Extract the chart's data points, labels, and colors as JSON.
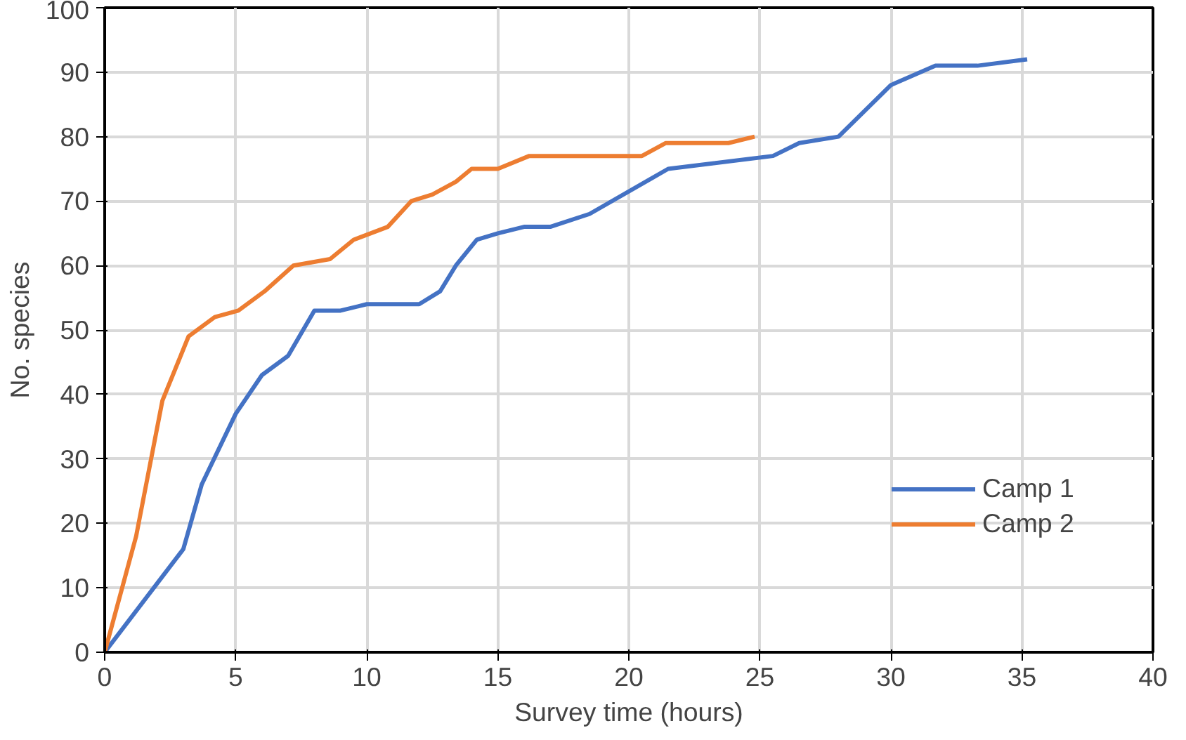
{
  "chart_data": {
    "type": "line",
    "xlabel": "Survey time (hours)",
    "ylabel": "No. species",
    "xlim": [
      0,
      40
    ],
    "ylim": [
      0,
      100
    ],
    "xticks": [
      0,
      5,
      10,
      15,
      20,
      25,
      30,
      35,
      40
    ],
    "yticks": [
      0,
      10,
      20,
      30,
      40,
      50,
      60,
      70,
      80,
      90,
      100
    ],
    "grid": true,
    "legend": "right",
    "marker": "none",
    "line_style": "solid",
    "series": [
      {
        "name": "Camp 1",
        "color": "#4472c4",
        "x": [
          0,
          3,
          3.7,
          5,
          6,
          7,
          8,
          9,
          10,
          12,
          12.8,
          13.4,
          14.2,
          15,
          16,
          17,
          18.5,
          21.5,
          25.5,
          26.5,
          28,
          30,
          31.7,
          33.3,
          35.2
        ],
        "values": [
          0,
          16,
          26,
          37,
          43,
          46,
          53,
          53,
          54,
          54,
          56,
          60,
          64,
          65,
          66,
          66,
          68,
          75,
          77,
          79,
          80,
          88,
          91,
          91,
          92
        ]
      },
      {
        "name": "Camp 2",
        "color": "#ed7d31",
        "x": [
          0,
          1.2,
          2.2,
          3.2,
          4.2,
          5.1,
          6.1,
          7.2,
          8.6,
          9.5,
          10.8,
          11.7,
          12.5,
          13.4,
          14,
          15,
          16.2,
          20.5,
          21.4,
          23.8,
          24.8
        ],
        "values": [
          0,
          18,
          39,
          49,
          52,
          53,
          56,
          60,
          61,
          64,
          66,
          70,
          71,
          73,
          75,
          75,
          77,
          77,
          79,
          79,
          80
        ]
      }
    ]
  }
}
